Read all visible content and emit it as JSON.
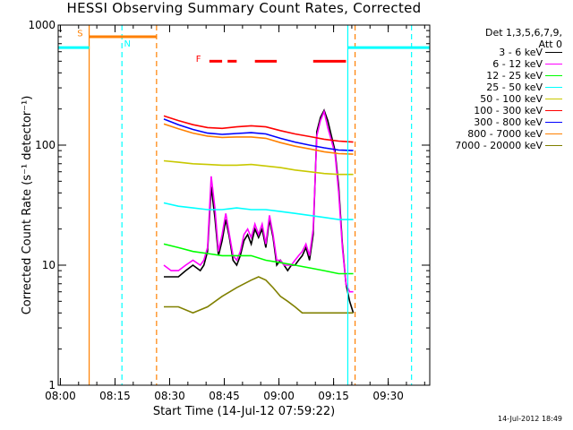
{
  "chart_data": {
    "type": "line",
    "title": "HESSI Observing Summary Count Rates, Corrected",
    "xlabel": "Start Time (14-Jul-12 07:59:22)",
    "ylabel": "Corrected Count Rate (s⁻¹ detector⁻¹)",
    "yscale": "log",
    "ylim": [
      1,
      1000
    ],
    "xlim_minutes": [
      0,
      102
    ],
    "x_ticks": [
      "08:00",
      "08:15",
      "08:30",
      "08:45",
      "09:00",
      "09:15",
      "09:30"
    ],
    "x_tick_minutes": [
      0.6,
      15.6,
      30.6,
      45.6,
      60.6,
      75.6,
      90.6
    ],
    "y_ticks": [
      "1",
      "10",
      "100",
      "1000"
    ],
    "y_tick_values": [
      1,
      10,
      100,
      1000
    ],
    "grid": false,
    "legend_position": "right",
    "legend_header": [
      "Det 1,3,5,6,7,9,",
      "Att 0"
    ],
    "flags": [
      {
        "label": "S",
        "color": "#ff8000",
        "kind": "bar",
        "y": 800,
        "x": [
          8.5,
          27
        ]
      },
      {
        "label": "N",
        "color": "#00ffff",
        "kind": "bar",
        "y": 650,
        "x": [
          0,
          8.5
        ]
      },
      {
        "label": "N",
        "color": "#00ffff",
        "kind": "bar",
        "y": 650,
        "x": [
          79.5,
          102
        ]
      },
      {
        "label": "F",
        "color": "#ff0000",
        "kind": "dashes",
        "y": 500,
        "segments": [
          [
            41.5,
            45
          ],
          [
            46.5,
            49
          ],
          [
            54,
            60
          ],
          [
            70,
            79
          ]
        ]
      }
    ],
    "flag_text": [
      {
        "label": "S",
        "color": "#ff8000",
        "x": 6,
        "y": 850
      },
      {
        "label": "N",
        "color": "#00ffff",
        "x": 19,
        "y": 700
      },
      {
        "label": "F",
        "color": "#ff0000",
        "x": 38.5,
        "y": 520
      }
    ],
    "vlines": [
      {
        "x": 8.5,
        "color": "#ff8000",
        "style": "solid"
      },
      {
        "x": 17.5,
        "color": "#00ffff",
        "style": "dashed"
      },
      {
        "x": 27,
        "color": "#ff8000",
        "style": "dashed"
      },
      {
        "x": 79.5,
        "color": "#00ffff",
        "style": "solid"
      },
      {
        "x": 81.5,
        "color": "#ff8000",
        "style": "dashed"
      },
      {
        "x": 97,
        "color": "#00ffff",
        "style": "dashed"
      }
    ],
    "series": [
      {
        "name": "3 - 6 keV",
        "color": "#000000",
        "x": [
          29,
          31,
          33,
          35,
          37,
          39,
          40,
          41,
          42,
          43,
          44,
          45,
          46,
          47,
          48,
          49,
          50,
          51,
          52,
          53,
          54,
          55,
          56,
          57,
          58,
          59,
          60,
          61,
          62,
          63,
          64,
          65,
          66,
          67,
          68,
          69,
          70,
          71,
          72,
          73,
          74,
          75,
          76,
          77,
          78,
          79,
          80,
          81
        ],
        "y": [
          8,
          8,
          8,
          9,
          10,
          9,
          10,
          13,
          45,
          25,
          12,
          16,
          24,
          17,
          11,
          10,
          12,
          16,
          18,
          15,
          20,
          17,
          20,
          14,
          24,
          17,
          10,
          11,
          10,
          9,
          10,
          10,
          11,
          12,
          14,
          11,
          18,
          130,
          170,
          195,
          160,
          120,
          90,
          45,
          15,
          7,
          5,
          4
        ]
      },
      {
        "name": "6 - 12 keV",
        "color": "#ff00ff",
        "x": [
          29,
          31,
          33,
          35,
          37,
          39,
          40,
          41,
          42,
          43,
          44,
          45,
          46,
          47,
          48,
          49,
          50,
          51,
          52,
          53,
          54,
          55,
          56,
          57,
          58,
          59,
          60,
          61,
          62,
          63,
          64,
          65,
          66,
          67,
          68,
          69,
          70,
          71,
          72,
          73,
          74,
          75,
          76,
          77,
          78,
          79,
          80,
          81
        ],
        "y": [
          10,
          9,
          9,
          10,
          11,
          10,
          11,
          14,
          55,
          30,
          13,
          18,
          27,
          18,
          12,
          11,
          13,
          18,
          20,
          17,
          22,
          18,
          22,
          15,
          26,
          18,
          11,
          11,
          10,
          10,
          10,
          11,
          12,
          13,
          15,
          12,
          20,
          120,
          160,
          190,
          140,
          110,
          85,
          40,
          14,
          7,
          6,
          6
        ]
      },
      {
        "name": "12 - 25 keV",
        "color": "#00ff00",
        "x": [
          29,
          33,
          37,
          41,
          45,
          49,
          53,
          57,
          61,
          65,
          69,
          73,
          77,
          81
        ],
        "y": [
          15,
          14,
          13,
          12.5,
          12,
          12,
          12,
          11,
          10.5,
          10,
          9.5,
          9,
          8.5,
          8.5
        ]
      },
      {
        "name": "25 - 50 keV",
        "color": "#00ffff",
        "x": [
          29,
          33,
          37,
          41,
          45,
          49,
          53,
          57,
          61,
          65,
          69,
          73,
          77,
          81
        ],
        "y": [
          33,
          31,
          30,
          29,
          29,
          30,
          29,
          29,
          28,
          27,
          26,
          25,
          24,
          24
        ]
      },
      {
        "name": "50 - 100 keV",
        "color": "#c8c800",
        "x": [
          29,
          33,
          37,
          41,
          45,
          49,
          53,
          57,
          61,
          65,
          69,
          73,
          77,
          81
        ],
        "y": [
          74,
          72,
          70,
          69,
          68,
          68,
          69,
          67,
          65,
          62,
          60,
          58,
          57,
          57
        ]
      },
      {
        "name": "100 - 300 keV",
        "color": "#ff0000",
        "x": [
          29,
          33,
          37,
          41,
          45,
          49,
          53,
          57,
          61,
          65,
          69,
          73,
          77,
          81
        ],
        "y": [
          175,
          160,
          148,
          140,
          138,
          142,
          145,
          142,
          132,
          124,
          118,
          112,
          108,
          106
        ]
      },
      {
        "name": "300 - 800 keV",
        "color": "#0000ff",
        "x": [
          29,
          33,
          37,
          41,
          45,
          49,
          53,
          57,
          61,
          65,
          69,
          73,
          77,
          81
        ],
        "y": [
          165,
          148,
          135,
          126,
          123,
          125,
          127,
          124,
          114,
          106,
          100,
          95,
          91,
          90
        ]
      },
      {
        "name": "800 - 7000 keV",
        "color": "#ff8000",
        "x": [
          29,
          33,
          37,
          41,
          45,
          49,
          53,
          57,
          61,
          65,
          69,
          73,
          77,
          81
        ],
        "y": [
          150,
          137,
          126,
          119,
          116,
          117,
          117,
          114,
          105,
          98,
          93,
          88,
          85,
          84
        ]
      },
      {
        "name": "7000 - 20000 keV",
        "color": "#808000",
        "x": [
          29,
          33,
          37,
          41,
          45,
          49,
          53,
          55,
          57,
          59,
          61,
          63,
          65,
          67,
          69,
          73,
          77,
          81
        ],
        "y": [
          4.5,
          4.5,
          4,
          4.5,
          5.5,
          6.5,
          7.5,
          8,
          7.5,
          6.5,
          5.5,
          5,
          4.5,
          4,
          4,
          4,
          4,
          4
        ]
      }
    ]
  },
  "footer": {
    "timestamp": "14-Jul-2012 18:49"
  }
}
